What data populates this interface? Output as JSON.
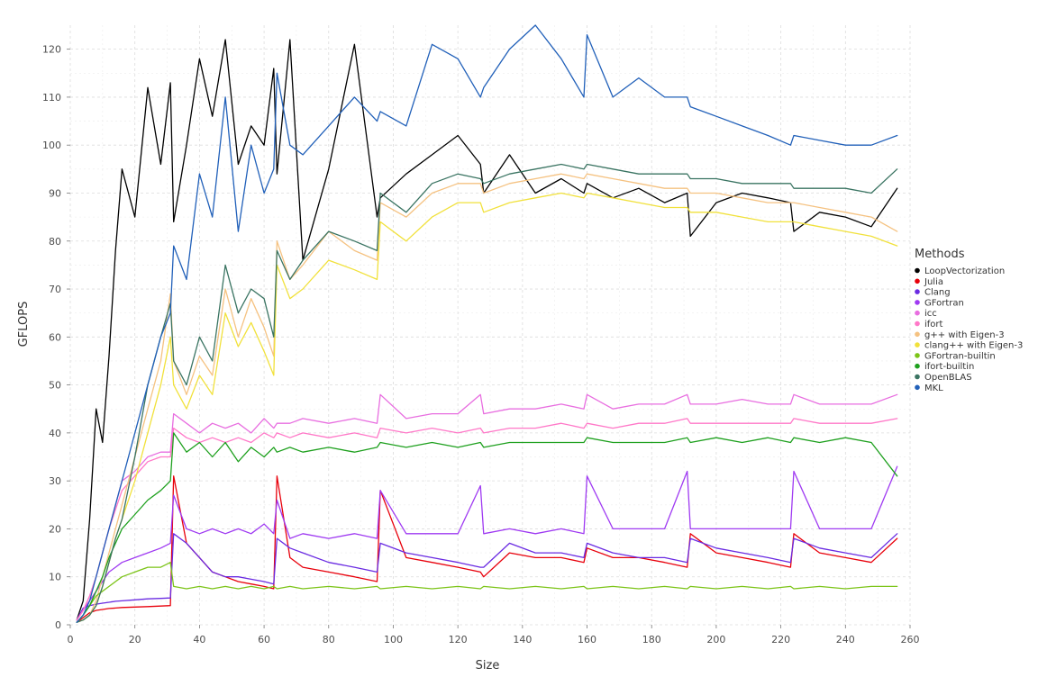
{
  "chart_data": {
    "type": "line",
    "title": "",
    "xlabel": "Size",
    "ylabel": "GFLOPS",
    "xlim": [
      0,
      260
    ],
    "ylim": [
      0,
      125
    ],
    "x_ticks": [
      "0",
      "20",
      "40",
      "60",
      "80",
      "100",
      "120",
      "140",
      "160",
      "180",
      "200",
      "220",
      "240",
      "260"
    ],
    "y_ticks": [
      "0",
      "10",
      "20",
      "30",
      "40",
      "50",
      "60",
      "70",
      "80",
      "90",
      "100",
      "110",
      "120"
    ],
    "grid": true,
    "legend": {
      "title": "Methods",
      "placement": "right"
    },
    "x": [
      2,
      4,
      6,
      8,
      10,
      12,
      14,
      16,
      20,
      24,
      28,
      31,
      32,
      36,
      40,
      44,
      48,
      52,
      56,
      60,
      63,
      64,
      68,
      72,
      80,
      88,
      95,
      96,
      104,
      112,
      120,
      127,
      128,
      136,
      144,
      152,
      159,
      160,
      168,
      176,
      184,
      191,
      192,
      200,
      208,
      216,
      223,
      224,
      232,
      240,
      248,
      256
    ],
    "series": [
      {
        "name": "LoopVectorization",
        "color": "#000000",
        "values": [
          1,
          5,
          22,
          45,
          38,
          56,
          78,
          95,
          85,
          112,
          96,
          113,
          84,
          100,
          118,
          106,
          122,
          96,
          104,
          100,
          116,
          94,
          122,
          76,
          95,
          121,
          85,
          89,
          94,
          98,
          102,
          96,
          90,
          98,
          90,
          93,
          90,
          92,
          89,
          91,
          88,
          90,
          81,
          88,
          90,
          89,
          88,
          82,
          86,
          85,
          83,
          91
        ]
      },
      {
        "name": "Julia",
        "color": "#e8000b",
        "values": [
          0.5,
          1.5,
          2.5,
          3,
          3.2,
          3.4,
          3.5,
          3.6,
          3.7,
          3.8,
          3.9,
          4,
          31,
          17,
          14,
          11,
          10,
          9,
          8.5,
          8,
          7.5,
          31,
          14,
          12,
          11,
          10,
          9,
          28,
          14,
          13,
          12,
          11,
          10,
          15,
          14,
          14,
          13,
          16,
          14,
          14,
          13,
          12,
          19,
          15,
          14,
          13,
          12,
          19,
          15,
          14,
          13,
          18
        ]
      },
      {
        "name": "Clang",
        "color": "#6a2be2",
        "values": [
          1,
          3.5,
          4,
          4.3,
          4.5,
          4.7,
          4.9,
          5,
          5.2,
          5.4,
          5.5,
          5.6,
          19,
          17,
          14,
          11,
          10,
          10,
          9.5,
          9,
          8.5,
          18,
          16,
          15,
          13,
          12,
          11,
          17,
          15,
          14,
          13,
          12,
          12,
          17,
          15,
          15,
          14,
          17,
          15,
          14,
          14,
          13,
          18,
          16,
          15,
          14,
          13,
          18,
          16,
          15,
          14,
          19
        ]
      },
      {
        "name": "GFortran",
        "color": "#9f3af2",
        "values": [
          1,
          3,
          5,
          7,
          9,
          11,
          12,
          13,
          14,
          15,
          16,
          17,
          27,
          20,
          19,
          20,
          19,
          20,
          19,
          21,
          19,
          26,
          18,
          19,
          18,
          19,
          18,
          28,
          19,
          19,
          19,
          29,
          19,
          20,
          19,
          20,
          19,
          31,
          20,
          20,
          20,
          32,
          20,
          20,
          20,
          20,
          20,
          32,
          20,
          20,
          20,
          33
        ]
      },
      {
        "name": "icc",
        "color": "#e86ee0",
        "values": [
          1,
          3,
          6,
          10,
          15,
          20,
          25,
          30,
          32,
          35,
          36,
          36,
          44,
          42,
          40,
          42,
          41,
          42,
          40,
          43,
          41,
          42,
          42,
          43,
          42,
          43,
          42,
          48,
          43,
          44,
          44,
          48,
          44,
          45,
          45,
          46,
          45,
          48,
          45,
          46,
          46,
          48,
          46,
          46,
          47,
          46,
          46,
          48,
          46,
          46,
          46,
          48
        ]
      },
      {
        "name": "ifort",
        "color": "#ff78c8",
        "values": [
          1,
          3,
          6,
          10,
          15,
          20,
          24,
          28,
          31,
          34,
          35,
          35,
          41,
          39,
          38,
          39,
          38,
          39,
          38,
          40,
          39,
          40,
          39,
          40,
          39,
          40,
          39,
          41,
          40,
          41,
          40,
          41,
          40,
          41,
          41,
          42,
          41,
          42,
          41,
          42,
          42,
          43,
          42,
          42,
          42,
          42,
          42,
          43,
          42,
          42,
          42,
          43
        ]
      },
      {
        "name": "g++ with Eigen-3",
        "color": "#f5c281",
        "values": [
          0.5,
          1,
          2,
          5,
          10,
          15,
          20,
          25,
          35,
          45,
          55,
          69,
          55,
          48,
          56,
          52,
          70,
          60,
          68,
          62,
          56,
          80,
          72,
          75,
          82,
          78,
          76,
          88,
          85,
          90,
          92,
          92,
          90,
          92,
          93,
          94,
          93,
          94,
          93,
          92,
          91,
          91,
          90,
          90,
          89,
          88,
          88,
          88,
          87,
          86,
          85,
          82
        ]
      },
      {
        "name": "clang++ with Eigen-3",
        "color": "#f1e13b",
        "values": [
          0.5,
          1,
          2,
          4,
          8,
          13,
          18,
          22,
          30,
          40,
          50,
          60,
          50,
          45,
          52,
          48,
          65,
          58,
          63,
          57,
          52,
          75,
          68,
          70,
          76,
          74,
          72,
          84,
          80,
          85,
          88,
          88,
          86,
          88,
          89,
          90,
          89,
          90,
          89,
          88,
          87,
          87,
          86,
          86,
          85,
          84,
          84,
          84,
          83,
          82,
          81,
          79
        ]
      },
      {
        "name": "GFortran-builtin",
        "color": "#7cc418",
        "values": [
          0.5,
          2,
          4,
          6,
          7,
          8,
          9,
          10,
          11,
          12,
          12,
          13,
          8,
          7.5,
          8,
          7.5,
          8,
          7.5,
          8,
          7.5,
          8,
          7.5,
          8,
          7.5,
          8,
          7.5,
          8,
          7.5,
          8,
          7.5,
          8,
          7.5,
          8,
          7.5,
          8,
          7.5,
          8,
          7.5,
          8,
          7.5,
          8,
          7.5,
          8,
          7.5,
          8,
          7.5,
          8,
          7.5,
          8,
          7.5,
          8,
          8
        ]
      },
      {
        "name": "ifort-builtin",
        "color": "#1ea01e",
        "values": [
          0.5,
          2,
          4,
          7,
          10,
          14,
          17,
          20,
          23,
          26,
          28,
          30,
          40,
          36,
          38,
          35,
          38,
          34,
          37,
          35,
          37,
          36,
          37,
          36,
          37,
          36,
          37,
          38,
          37,
          38,
          37,
          38,
          37,
          38,
          38,
          38,
          38,
          39,
          38,
          38,
          38,
          39,
          38,
          39,
          38,
          39,
          38,
          39,
          38,
          39,
          38,
          31
        ]
      },
      {
        "name": "OpenBLAS",
        "color": "#3a7462",
        "values": [
          0.5,
          1,
          2,
          4,
          8,
          13,
          18,
          22,
          35,
          50,
          60,
          67,
          55,
          50,
          60,
          55,
          75,
          65,
          70,
          68,
          60,
          78,
          72,
          76,
          82,
          80,
          78,
          90,
          86,
          92,
          94,
          93,
          92,
          94,
          95,
          96,
          95,
          96,
          95,
          94,
          94,
          94,
          93,
          93,
          92,
          92,
          92,
          91,
          91,
          91,
          90,
          95
        ]
      },
      {
        "name": "MKL",
        "color": "#2160b9",
        "values": [
          0.5,
          2,
          5,
          10,
          15,
          20,
          25,
          30,
          40,
          50,
          60,
          65,
          79,
          72,
          94,
          85,
          110,
          82,
          100,
          90,
          95,
          115,
          100,
          98,
          104,
          110,
          105,
          107,
          104,
          121,
          118,
          110,
          112,
          120,
          125,
          118,
          110,
          123,
          110,
          114,
          110,
          110,
          108,
          106,
          104,
          102,
          100,
          102,
          101,
          100,
          100,
          102
        ]
      }
    ]
  }
}
